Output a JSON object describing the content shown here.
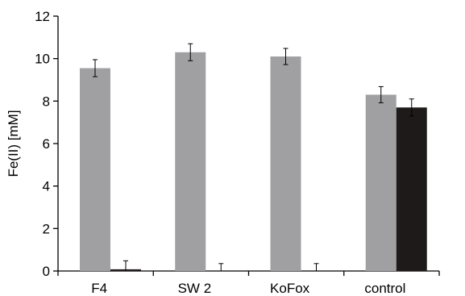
{
  "chart_data": {
    "type": "bar",
    "title": "",
    "xlabel": "",
    "ylabel": "Fe(II) [mM]",
    "ylim": [
      0,
      12
    ],
    "yticks": [
      0,
      2,
      4,
      6,
      8,
      10,
      12
    ],
    "grid": false,
    "legend": "none",
    "categories": [
      "F4",
      "SW 2",
      "KoFox",
      "control"
    ],
    "series": [
      {
        "color": "#a0a0a2",
        "values": [
          9.55,
          10.3,
          10.1,
          8.3
        ],
        "errors": [
          0.4,
          0.4,
          0.38,
          0.38
        ]
      },
      {
        "color": "#1e1a1a",
        "values": [
          0.08,
          0.0,
          0.0,
          7.7
        ],
        "errors": [
          0.4,
          0.35,
          0.35,
          0.4
        ]
      }
    ]
  }
}
